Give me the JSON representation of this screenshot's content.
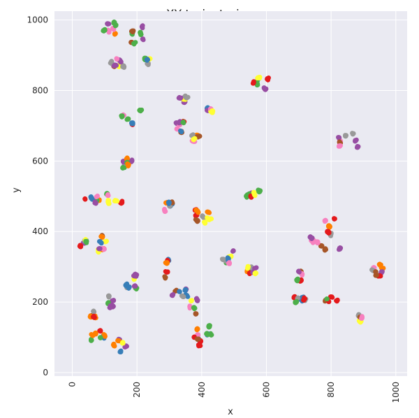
{
  "chart_data": {
    "type": "scatter",
    "title": "XY trajectories",
    "xlabel": "x",
    "ylabel": "y",
    "xlim": [
      -55,
      1035
    ],
    "ylim": [
      -10,
      1025
    ],
    "xticks": [
      0,
      200,
      400,
      600,
      800,
      1000
    ],
    "yticks": [
      0,
      200,
      400,
      600,
      800,
      1000
    ],
    "xtick_rotation": -90,
    "grid": true,
    "legend": "none",
    "colors": {
      "background": "#eaeaf2",
      "red": "#e41a1c",
      "blue": "#377eb8",
      "green": "#4daf4a",
      "purple": "#984ea3",
      "orange": "#ff7f00",
      "yellow": "#ffff33",
      "brown": "#a65628",
      "pink": "#f781bf",
      "grey": "#999999"
    },
    "clusters": [
      {
        "x": 120,
        "y": 970,
        "spread": [
          35,
          28
        ]
      },
      {
        "x": 200,
        "y": 955,
        "spread": [
          25,
          30
        ]
      },
      {
        "x": 140,
        "y": 880,
        "spread": [
          25,
          15
        ]
      },
      {
        "x": 230,
        "y": 880,
        "spread": [
          12,
          12
        ]
      },
      {
        "x": 580,
        "y": 820,
        "spread": [
          30,
          30
        ]
      },
      {
        "x": 340,
        "y": 775,
        "spread": [
          18,
          10
        ]
      },
      {
        "x": 420,
        "y": 745,
        "spread": [
          30,
          25
        ]
      },
      {
        "x": 185,
        "y": 725,
        "spread": [
          40,
          30
        ]
      },
      {
        "x": 340,
        "y": 690,
        "spread": [
          25,
          25
        ]
      },
      {
        "x": 380,
        "y": 665,
        "spread": [
          15,
          10
        ]
      },
      {
        "x": 850,
        "y": 660,
        "spread": [
          45,
          25
        ]
      },
      {
        "x": 170,
        "y": 595,
        "spread": [
          15,
          20
        ]
      },
      {
        "x": 60,
        "y": 480,
        "spread": [
          30,
          25
        ]
      },
      {
        "x": 130,
        "y": 490,
        "spread": [
          30,
          30
        ]
      },
      {
        "x": 300,
        "y": 470,
        "spread": [
          15,
          15
        ]
      },
      {
        "x": 400,
        "y": 440,
        "spread": [
          30,
          25
        ]
      },
      {
        "x": 550,
        "y": 505,
        "spread": [
          45,
          15
        ]
      },
      {
        "x": 30,
        "y": 365,
        "spread": [
          20,
          15
        ]
      },
      {
        "x": 95,
        "y": 370,
        "spread": [
          20,
          30
        ]
      },
      {
        "x": 490,
        "y": 330,
        "spread": [
          30,
          40
        ]
      },
      {
        "x": 560,
        "y": 290,
        "spread": [
          25,
          15
        ]
      },
      {
        "x": 750,
        "y": 380,
        "spread": [
          35,
          30
        ]
      },
      {
        "x": 800,
        "y": 390,
        "spread": [
          30,
          60
        ]
      },
      {
        "x": 950,
        "y": 285,
        "spread": [
          25,
          30
        ]
      },
      {
        "x": 705,
        "y": 275,
        "spread": [
          15,
          20
        ]
      },
      {
        "x": 185,
        "y": 260,
        "spread": [
          25,
          25
        ]
      },
      {
        "x": 300,
        "y": 300,
        "spread": [
          20,
          50
        ]
      },
      {
        "x": 330,
        "y": 230,
        "spread": [
          30,
          15
        ]
      },
      {
        "x": 380,
        "y": 190,
        "spread": [
          25,
          30
        ]
      },
      {
        "x": 410,
        "y": 130,
        "spread": [
          30,
          30
        ]
      },
      {
        "x": 385,
        "y": 90,
        "spread": [
          15,
          20
        ]
      },
      {
        "x": 700,
        "y": 205,
        "spread": [
          30,
          15
        ]
      },
      {
        "x": 800,
        "y": 205,
        "spread": [
          20,
          10
        ]
      },
      {
        "x": 895,
        "y": 145,
        "spread": [
          12,
          20
        ]
      },
      {
        "x": 65,
        "y": 165,
        "spread": [
          15,
          10
        ]
      },
      {
        "x": 120,
        "y": 200,
        "spread": [
          10,
          20
        ]
      },
      {
        "x": 80,
        "y": 110,
        "spread": [
          30,
          25
        ]
      },
      {
        "x": 150,
        "y": 80,
        "spread": [
          25,
          30
        ]
      }
    ]
  }
}
